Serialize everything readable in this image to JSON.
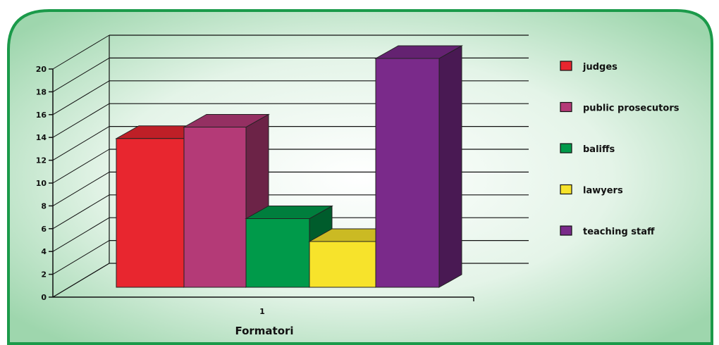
{
  "chart_data": {
    "type": "bar",
    "style": "3d-clustered-column",
    "categories": [
      "1"
    ],
    "xlabel": "Formatori",
    "ylabel": "",
    "ylim": [
      0,
      20
    ],
    "ytick_step": 2,
    "grid": true,
    "legend_position": "right",
    "series": [
      {
        "name": "judges",
        "values": [
          13
        ],
        "color": "#e8262f"
      },
      {
        "name": "public prosecutors",
        "values": [
          14
        ],
        "color": "#b43a77"
      },
      {
        "name": "baliffs",
        "values": [
          6
        ],
        "color": "#009a4a"
      },
      {
        "name": "lawyers",
        "values": [
          4
        ],
        "color": "#f7e32b"
      },
      {
        "name": "teaching staff",
        "values": [
          20
        ],
        "color": "#7a2a8a"
      }
    ]
  },
  "colors": {
    "panel_border": "#1b9a4a",
    "panel_center": "#ffffff",
    "panel_edge": "#9ed6ad"
  }
}
